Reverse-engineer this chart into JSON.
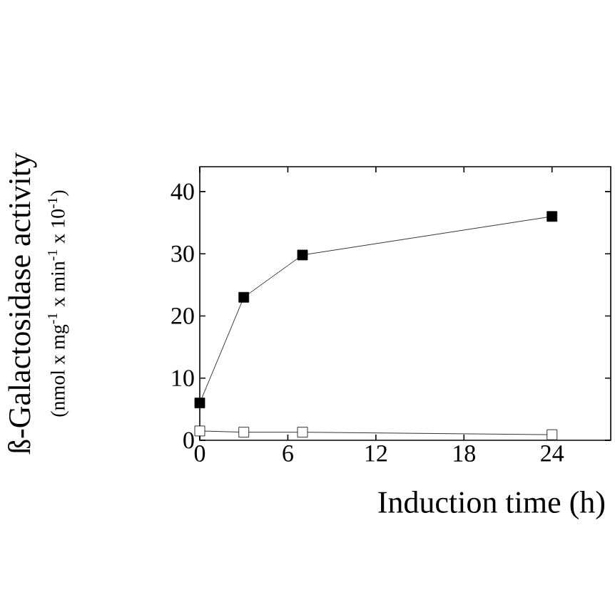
{
  "chart_data": {
    "type": "line",
    "xlabel": "Induction time (h)",
    "ylabel": "ß-Galactosidase activity",
    "annotations": [
      "(nmol x mg$^{-1}$ x min$^{-1}$ x 10$^{-1}$)"
    ],
    "x": [
      0,
      3,
      7,
      24
    ],
    "xlim": [
      0,
      28
    ],
    "xticks": [
      0,
      6,
      12,
      18,
      24
    ],
    "ylim": [
      0,
      44
    ],
    "yticks": [
      0,
      10,
      20,
      30,
      40
    ],
    "marker": "square",
    "grid": false,
    "series": [
      {
        "color": "#000000",
        "values": [
          6,
          23,
          29.8,
          36
        ]
      },
      {
        "color": "#ffffff",
        "values": [
          1.5,
          1.3,
          1.3,
          0.9
        ]
      }
    ]
  }
}
